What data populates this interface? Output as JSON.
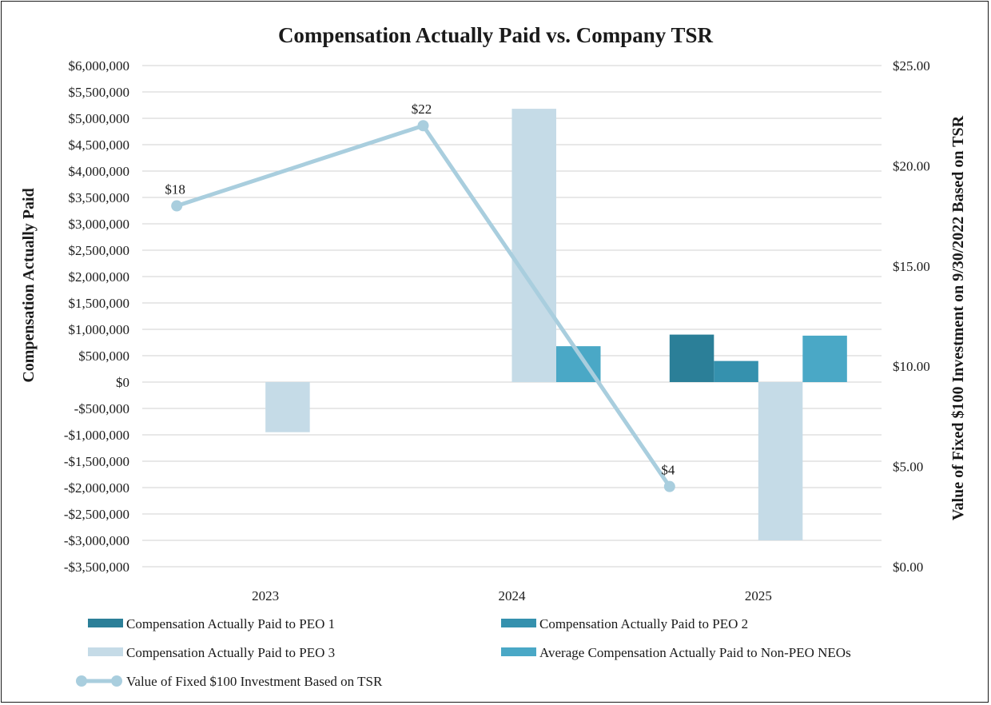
{
  "chart_data": {
    "type": "bar",
    "title": "Compensation Actually Paid vs. Company TSR",
    "categories": [
      "2023",
      "2024",
      "2025"
    ],
    "ylabel": "Compensation Actually Paid",
    "y2label": "Value of Fixed $100 Investment on 9/30/2022 Based on TSR",
    "ylim": [
      -3500000,
      6000000
    ],
    "y2lim": [
      0,
      25
    ],
    "y_ticks": [
      6000000,
      5500000,
      5000000,
      4500000,
      4000000,
      3500000,
      3000000,
      2500000,
      2000000,
      1500000,
      1000000,
      500000,
      0,
      -500000,
      -1000000,
      -1500000,
      -2000000,
      -2500000,
      -3000000,
      -3500000
    ],
    "y_tick_labels": [
      "$6,000,000",
      "$5,500,000",
      "$5,000,000",
      "$4,500,000",
      "$4,000,000",
      "$3,500,000",
      "$3,000,000",
      "$2,500,000",
      "$2,000,000",
      "$1,500,000",
      "$1,000,000",
      "$500,000",
      "$0",
      "-$500,000",
      "-$1,000,000",
      "-$1,500,000",
      "-$2,000,000",
      "-$2,500,000",
      "-$3,000,000",
      "-$3,500,000"
    ],
    "y2_ticks": [
      25,
      20,
      15,
      10,
      5,
      0
    ],
    "y2_tick_labels": [
      "$25.00",
      "$20.00",
      "$15.00",
      "$10.00",
      "$5.00",
      "$0.00"
    ],
    "grid": true,
    "legend_position": "bottom",
    "series": [
      {
        "name": "Compensation Actually Paid to PEO 1",
        "color": "#2b7f98",
        "values": [
          null,
          null,
          900000
        ]
      },
      {
        "name": "Compensation Actually Paid to PEO 2",
        "color": "#3591ae",
        "values": [
          null,
          null,
          400000
        ]
      },
      {
        "name": "Compensation Actually Paid to PEO 3",
        "color": "#c5dbe7",
        "values": [
          -950000,
          5180000,
          -3000000
        ]
      },
      {
        "name": "Average Compensation Actually Paid to Non-PEO NEOs",
        "color": "#4aa8c6",
        "values": [
          null,
          680000,
          880000
        ]
      }
    ],
    "line_series": {
      "name": "Value of Fixed $100 Investment Based on TSR",
      "color": "#a9cede",
      "axis": "right",
      "values": [
        18,
        22,
        4
      ],
      "labels": [
        "$18",
        "$22",
        "$4"
      ]
    }
  }
}
